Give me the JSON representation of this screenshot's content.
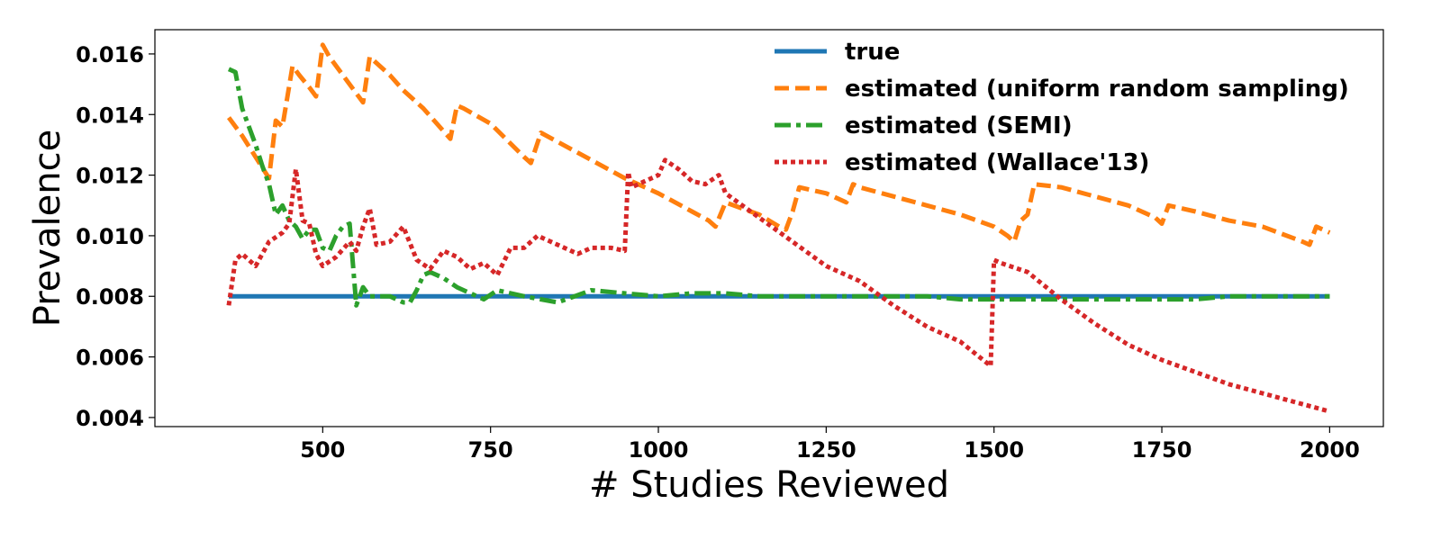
{
  "chart_data": {
    "type": "line",
    "title": "",
    "xlabel": "# Studies Reviewed",
    "ylabel": "Prevalence",
    "xlim": [
      250,
      2080
    ],
    "ylim": [
      0.0037,
      0.0168
    ],
    "xticks": [
      500,
      750,
      1000,
      1250,
      1500,
      1750,
      2000
    ],
    "xtick_labels": [
      "500",
      "750",
      "1000",
      "1250",
      "1500",
      "1750",
      "2000"
    ],
    "yticks": [
      0.004,
      0.006,
      0.008,
      0.01,
      0.012,
      0.014,
      0.016
    ],
    "ytick_labels": [
      "0.004",
      "0.006",
      "0.008",
      "0.010",
      "0.012",
      "0.014",
      "0.016"
    ],
    "grid": false,
    "legend_position": "top-right",
    "series": [
      {
        "name": "true",
        "color": "#1f77b4",
        "style": "solid",
        "x": [
          360,
          2000
        ],
        "y": [
          0.008,
          0.008
        ]
      },
      {
        "name": "estimated (uniform random sampling)",
        "color": "#ff7f0e",
        "style": "dashed",
        "x": [
          360,
          380,
          400,
          420,
          430,
          440,
          455,
          465,
          480,
          490,
          500,
          510,
          530,
          550,
          560,
          570,
          580,
          600,
          620,
          650,
          690,
          700,
          710,
          750,
          800,
          810,
          825,
          850,
          900,
          950,
          1000,
          1050,
          1075,
          1085,
          1100,
          1150,
          1180,
          1190,
          1200,
          1210,
          1250,
          1280,
          1290,
          1300,
          1350,
          1400,
          1450,
          1500,
          1520,
          1530,
          1540,
          1550,
          1560,
          1600,
          1650,
          1700,
          1740,
          1750,
          1760,
          1800,
          1850,
          1900,
          1960,
          1970,
          1980,
          2000
        ],
        "y": [
          0.0139,
          0.0133,
          0.0126,
          0.0119,
          0.0138,
          0.0136,
          0.0156,
          0.0153,
          0.0149,
          0.0146,
          0.0163,
          0.0159,
          0.0153,
          0.0147,
          0.0144,
          0.0159,
          0.0157,
          0.0153,
          0.0148,
          0.0142,
          0.0132,
          0.0143,
          0.0142,
          0.0137,
          0.0126,
          0.0124,
          0.0134,
          0.0131,
          0.0125,
          0.0119,
          0.0114,
          0.0108,
          0.0105,
          0.0103,
          0.0111,
          0.0107,
          0.0103,
          0.0102,
          0.0108,
          0.0116,
          0.0114,
          0.0111,
          0.0117,
          0.0116,
          0.0113,
          0.011,
          0.0107,
          0.0103,
          0.01,
          0.0098,
          0.0105,
          0.0107,
          0.0117,
          0.0116,
          0.0113,
          0.011,
          0.0106,
          0.0104,
          0.011,
          0.0108,
          0.0105,
          0.0103,
          0.0098,
          0.0097,
          0.0103,
          0.0101
        ]
      },
      {
        "name": "estimated (SEMI)",
        "color": "#2ca02c",
        "style": "dashdot",
        "x": [
          360,
          370,
          380,
          400,
          410,
          420,
          430,
          440,
          450,
          460,
          470,
          480,
          490,
          500,
          510,
          520,
          530,
          540,
          550,
          560,
          570,
          580,
          600,
          620,
          630,
          640,
          650,
          660,
          680,
          700,
          720,
          740,
          760,
          800,
          850,
          900,
          950,
          1000,
          1050,
          1100,
          1150,
          1200,
          1250,
          1300,
          1350,
          1400,
          1450,
          1500,
          1550,
          1600,
          1650,
          1700,
          1750,
          1800,
          1850,
          1900,
          1950,
          2000
        ],
        "y": [
          0.0155,
          0.0154,
          0.0142,
          0.013,
          0.0123,
          0.0117,
          0.0107,
          0.011,
          0.0105,
          0.0103,
          0.0099,
          0.0102,
          0.0102,
          0.0096,
          0.0095,
          0.01,
          0.0103,
          0.0104,
          0.0077,
          0.0083,
          0.008,
          0.008,
          0.008,
          0.0078,
          0.0078,
          0.0082,
          0.0087,
          0.0088,
          0.0086,
          0.0083,
          0.0081,
          0.0079,
          0.0082,
          0.008,
          0.0078,
          0.0082,
          0.0081,
          0.008,
          0.0081,
          0.0081,
          0.008,
          0.008,
          0.008,
          0.008,
          0.008,
          0.008,
          0.0079,
          0.0079,
          0.0079,
          0.0079,
          0.0079,
          0.0079,
          0.0079,
          0.0079,
          0.008,
          0.008,
          0.008,
          0.008
        ]
      },
      {
        "name": "estimated (Wallace'13)",
        "color": "#d62728",
        "style": "dotted",
        "x": [
          360,
          370,
          380,
          400,
          420,
          440,
          450,
          460,
          470,
          480,
          490,
          500,
          520,
          540,
          550,
          560,
          570,
          580,
          600,
          620,
          640,
          660,
          680,
          700,
          720,
          740,
          760,
          780,
          800,
          820,
          850,
          880,
          900,
          930,
          950,
          955,
          960,
          980,
          1000,
          1010,
          1030,
          1050,
          1070,
          1090,
          1100,
          1150,
          1200,
          1250,
          1300,
          1350,
          1400,
          1450,
          1495,
          1500,
          1510,
          1550,
          1600,
          1650,
          1700,
          1750,
          1800,
          1850,
          1900,
          1950,
          2000
        ],
        "y": [
          0.0077,
          0.0092,
          0.0094,
          0.009,
          0.0098,
          0.0101,
          0.0104,
          0.0122,
          0.0105,
          0.0104,
          0.0094,
          0.009,
          0.0093,
          0.0098,
          0.0095,
          0.0103,
          0.0109,
          0.0097,
          0.0098,
          0.0103,
          0.0092,
          0.0089,
          0.0095,
          0.0093,
          0.0089,
          0.0091,
          0.0087,
          0.0096,
          0.0096,
          0.01,
          0.0097,
          0.0094,
          0.0096,
          0.0096,
          0.0095,
          0.0121,
          0.0116,
          0.0118,
          0.012,
          0.0125,
          0.0122,
          0.0118,
          0.0117,
          0.012,
          0.0114,
          0.0106,
          0.0098,
          0.009,
          0.0085,
          0.0077,
          0.007,
          0.0065,
          0.0057,
          0.0092,
          0.0091,
          0.0088,
          0.0079,
          0.0071,
          0.0064,
          0.0059,
          0.0055,
          0.0051,
          0.0048,
          0.0045,
          0.0042
        ]
      }
    ]
  }
}
